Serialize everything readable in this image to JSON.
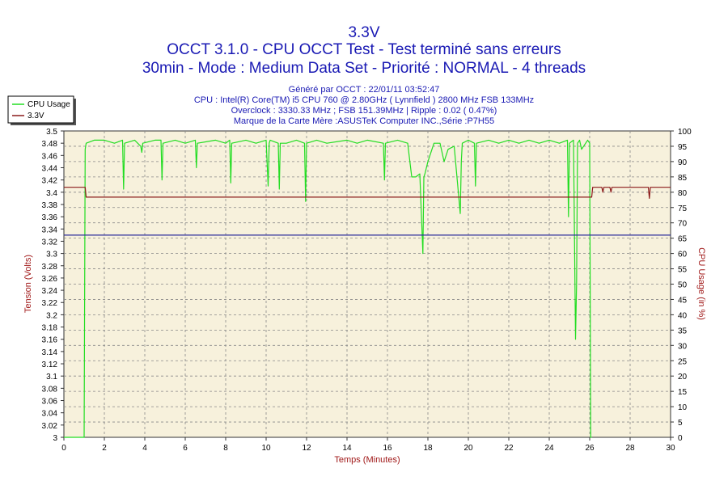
{
  "header": {
    "title": "3.3V",
    "line2": "OCCT 3.1.0 - CPU OCCT Test - Test terminé sans erreurs",
    "line3": "30min - Mode : Medium Data Set - Priorité : NORMAL - 4 threads",
    "generated": "Généré par OCCT : 22/01/11 03:52:47",
    "cpu": "CPU : Intel(R) Core(TM) i5 CPU 760 @ 2.80GHz ( Lynnfield ) 2800 MHz FSB 133MHz",
    "overclock": "Overclock : 3330.33 MHz ; FSB 151.39MHz | Ripple : 0.02 ( 0.47%)",
    "board": "Marque de la Carte Mère :ASUSTeK Computer INC.,Série :P7H55"
  },
  "colors": {
    "title": "#1a1ab4",
    "plot_bg": "#f7f1dc",
    "cpu_line": "#22dd22",
    "volt_line": "#8b1a1a",
    "ref_line": "#2a2a9a",
    "axis_label": "#a01818"
  },
  "chart_data": {
    "type": "line",
    "title": "3.3V",
    "xlabel": "Temps (Minutes)",
    "ylabel_left": "Tension (Volts)",
    "ylabel_right": "CPU Usage (in %)",
    "xlim": [
      0,
      30
    ],
    "ylim_left": [
      3.0,
      3.5
    ],
    "ylim_right": [
      0,
      100
    ],
    "xticks": [
      "0",
      "2",
      "4",
      "6",
      "8",
      "10",
      "12",
      "14",
      "16",
      "18",
      "20",
      "22",
      "24",
      "26",
      "28",
      "30"
    ],
    "yticks_left": [
      "3.5",
      "3.48",
      "3.46",
      "3.44",
      "3.42",
      "3.4",
      "3.38",
      "3.36",
      "3.34",
      "3.32",
      "3.3",
      "3.28",
      "3.26",
      "3.24",
      "3.22",
      "3.2",
      "3.18",
      "3.16",
      "3.14",
      "3.12",
      "3.1",
      "3.08",
      "3.06",
      "3.04",
      "3.02",
      "3"
    ],
    "yticks_right": [
      "100",
      "95",
      "90",
      "85",
      "80",
      "75",
      "70",
      "65",
      "60",
      "55",
      "50",
      "45",
      "40",
      "35",
      "30",
      "25",
      "20",
      "15",
      "10",
      "5",
      "0"
    ],
    "grid": true,
    "legend": {
      "placement": "top-left",
      "entries": [
        "CPU Usage",
        "3.3V"
      ]
    },
    "series": [
      {
        "name": "CPU Usage",
        "axis": "right",
        "x": [
          0,
          1.0,
          1.05,
          1.1,
          1.5,
          2.0,
          2.5,
          2.9,
          2.95,
          3.0,
          3.5,
          3.8,
          3.85,
          3.9,
          4.5,
          4.8,
          4.85,
          4.9,
          5.5,
          6.0,
          6.5,
          6.55,
          6.6,
          7.5,
          8.0,
          8.2,
          8.25,
          8.3,
          9.0,
          9.5,
          10.0,
          10.1,
          10.15,
          10.2,
          10.6,
          10.65,
          10.7,
          11.0,
          11.5,
          11.9,
          11.95,
          12.0,
          12.5,
          13.0,
          14.0,
          14.5,
          15.0,
          15.8,
          15.85,
          15.9,
          16.5,
          17.0,
          17.2,
          17.4,
          17.6,
          17.75,
          17.8,
          17.85,
          18.0,
          18.3,
          18.6,
          18.8,
          19.0,
          19.3,
          19.6,
          19.65,
          19.7,
          20.0,
          20.3,
          20.35,
          20.4,
          21.0,
          21.5,
          22.0,
          22.5,
          23.0,
          23.5,
          24.0,
          24.5,
          24.9,
          24.95,
          25.0,
          25.2,
          25.3,
          25.35,
          25.4,
          25.5,
          25.6,
          25.8,
          25.9,
          26.0,
          26.05,
          26.1
        ],
        "values": [
          0,
          0,
          94,
          96,
          97,
          97,
          96,
          97,
          81,
          96,
          97,
          95,
          93,
          96,
          97,
          97,
          84,
          96,
          97,
          96,
          97,
          88,
          96,
          97,
          96,
          97,
          83,
          96,
          97,
          96,
          97,
          82,
          96,
          97,
          96,
          81,
          96,
          96,
          97,
          96,
          77,
          96,
          97,
          96,
          97,
          96,
          97,
          96,
          84,
          96,
          97,
          96,
          85,
          85,
          86,
          60,
          85,
          86,
          90,
          96,
          96,
          90,
          94,
          95,
          73,
          90,
          96,
          97,
          96,
          82,
          96,
          97,
          96,
          97,
          96,
          97,
          96,
          97,
          96,
          97,
          72,
          96,
          97,
          32,
          50,
          96,
          97,
          94,
          96,
          97,
          96,
          0,
          0
        ]
      },
      {
        "name": "3.3V",
        "axis": "left",
        "x": [
          0,
          1.05,
          1.1,
          26.1,
          26.15,
          26.6,
          26.65,
          26.7,
          27.0,
          27.05,
          27.1,
          28.9,
          28.95,
          29.0,
          30
        ],
        "values": [
          3.408,
          3.408,
          3.392,
          3.392,
          3.408,
          3.408,
          3.4,
          3.408,
          3.408,
          3.4,
          3.408,
          3.408,
          3.39,
          3.408,
          3.408
        ]
      },
      {
        "name": "",
        "axis": "left",
        "x": [
          0,
          30
        ],
        "values": [
          3.33,
          3.33
        ]
      }
    ]
  }
}
